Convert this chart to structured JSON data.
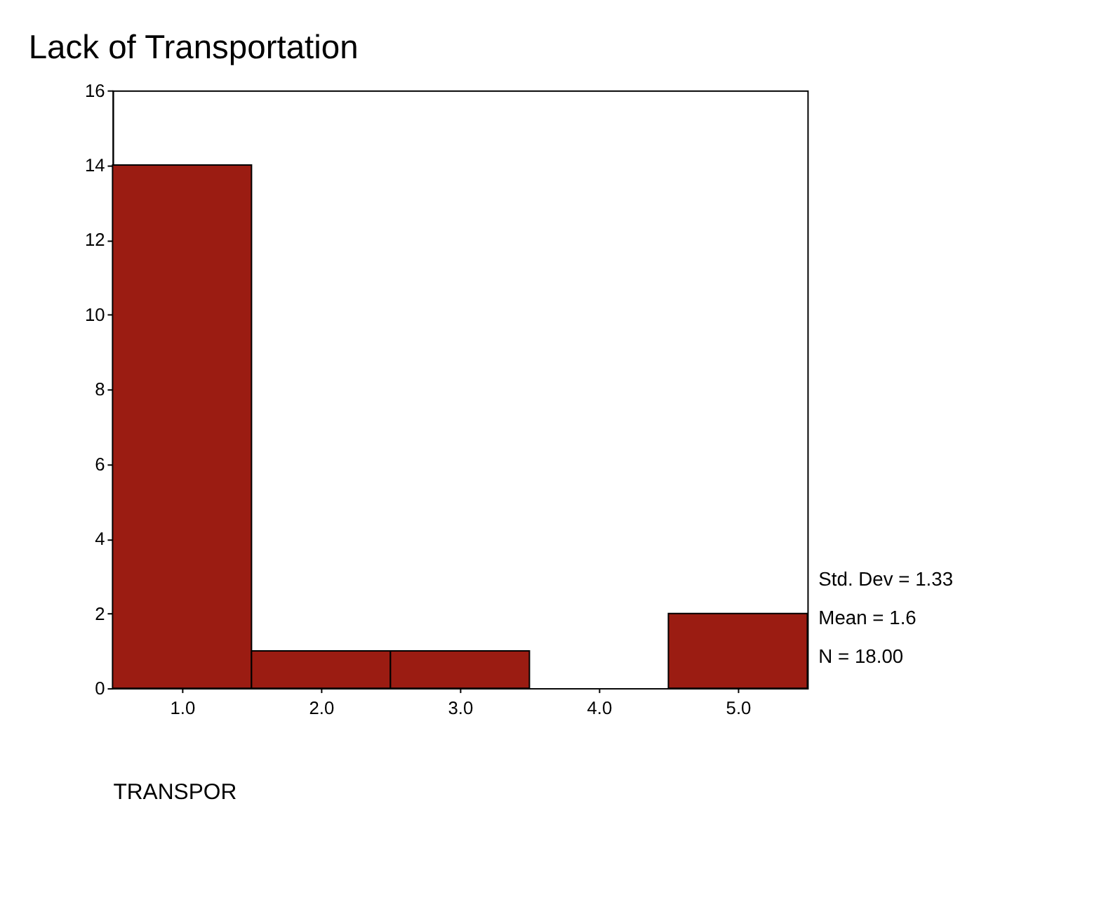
{
  "chart_data": {
    "type": "histogram",
    "title": "Lack of Transportation",
    "xlabel": "TRANSPOR",
    "bins": [
      0.5,
      1.5,
      2.5,
      3.5,
      4.5,
      5.5
    ],
    "values": [
      14,
      1,
      1,
      0,
      2
    ],
    "color": "#9b1c12",
    "xlim": [
      0.5,
      5.5
    ],
    "xticks": [
      {
        "value": 1,
        "label": "1.0"
      },
      {
        "value": 2,
        "label": "2.0"
      },
      {
        "value": 3,
        "label": "3.0"
      },
      {
        "value": 4,
        "label": "4.0"
      },
      {
        "value": 5,
        "label": "5.0"
      }
    ],
    "ylim": [
      0,
      16
    ],
    "yticks": [
      0,
      2,
      4,
      6,
      8,
      10,
      12,
      14,
      16
    ],
    "annotations": [
      "Std. Dev = 1.33",
      "Mean = 1.6",
      "N = 18.00"
    ],
    "grid": false
  }
}
